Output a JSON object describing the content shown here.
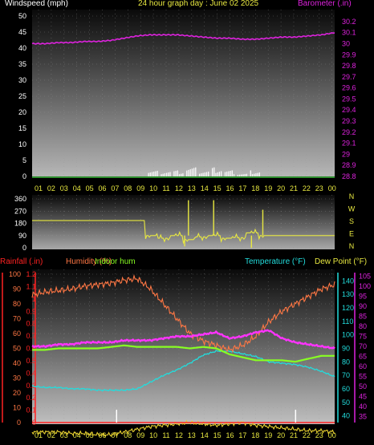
{
  "header": {
    "wind_title": "Windspeed (mph)",
    "graph_title": "24 hour graph day : June 02 2025",
    "baro_title": "Barometer (.in)"
  },
  "bottom_header": {
    "rain_title": "Rainfall (.in)",
    "hum_title": "Humidity (%)",
    "indoor_title": "Indoor hum",
    "temp_title": "Temperature (°F)",
    "dew_title": "Dew Point (°F)"
  },
  "colors": {
    "wind": "#ffffff",
    "baro": "#dd22dd",
    "dir": "#e8e840",
    "humidity": "#ff7744",
    "indoor": "#88ff22",
    "rain": "#ff2222",
    "temperature": "#22dddd",
    "dewpoint": "#ff33ff",
    "yellow_trace": "#e8d030"
  },
  "chart_data": [
    {
      "type": "line",
      "title": "24 hour graph day : June 02 2025",
      "x": [
        "01",
        "02",
        "03",
        "04",
        "05",
        "06",
        "07",
        "08",
        "09",
        "10",
        "11",
        "12",
        "13",
        "14",
        "15",
        "16",
        "17",
        "18",
        "19",
        "20",
        "21",
        "22",
        "23",
        "00"
      ],
      "left_axis": {
        "label": "Windspeed (mph)",
        "ticks": [
          0,
          5,
          10,
          15,
          20,
          25,
          30,
          35,
          40,
          45,
          50
        ],
        "ylim": [
          0,
          50
        ]
      },
      "right_axis": {
        "label": "Barometer (.in)",
        "ticks": [
          "28.8",
          "28.9",
          "29",
          "29.1",
          "29.2",
          "29.3",
          "29.4",
          "29.5",
          "29.6",
          "29.7",
          "29.8",
          "29.9",
          "30",
          "30.1",
          "30.2"
        ],
        "ylim": [
          28.8,
          30.25
        ]
      },
      "series": [
        {
          "name": "Windspeed (mph)",
          "hourly_max": [
            0,
            0,
            0,
            0,
            0,
            0,
            0,
            0,
            0,
            2,
            2,
            2,
            3,
            2,
            3,
            2,
            1,
            2,
            0,
            0,
            0,
            0,
            0,
            0
          ]
        },
        {
          "name": "Barometer (.in)",
          "values": [
            30.0,
            30.0,
            30.01,
            30.01,
            30.02,
            30.02,
            30.03,
            30.05,
            30.07,
            30.08,
            30.08,
            30.08,
            30.07,
            30.06,
            30.05,
            30.05,
            30.04,
            30.04,
            30.05,
            30.06,
            30.06,
            30.07,
            30.08,
            30.1
          ]
        }
      ]
    },
    {
      "type": "line",
      "x": [
        "01",
        "02",
        "03",
        "04",
        "05",
        "06",
        "07",
        "08",
        "09",
        "10",
        "11",
        "12",
        "13",
        "14",
        "15",
        "16",
        "17",
        "18",
        "19",
        "20",
        "21",
        "22",
        "23",
        "00"
      ],
      "right_labels": [
        "N",
        "W",
        "S",
        "E",
        "N"
      ],
      "y_ticks": [
        0,
        90,
        180,
        270,
        360
      ],
      "ylim": [
        0,
        360
      ],
      "series": [
        {
          "name": "Wind direction",
          "values": [
            200,
            200,
            200,
            200,
            200,
            200,
            200,
            200,
            200,
            90,
            70,
            90,
            60,
            80,
            90,
            70,
            75,
            110,
            90,
            90,
            90,
            90,
            90,
            90
          ]
        }
      ]
    },
    {
      "type": "line",
      "x": [
        "01",
        "02",
        "03",
        "04",
        "05",
        "06",
        "07",
        "08",
        "09",
        "10",
        "11",
        "12",
        "13",
        "14",
        "15",
        "16",
        "17",
        "18",
        "19",
        "20",
        "21",
        "22",
        "23",
        "00"
      ],
      "rain_axis": {
        "label": "Rainfall (.in)",
        "ticks": [
          "0",
          "0.1",
          "0.2",
          "0.3",
          "0.4",
          "0.5",
          "0.6",
          "0.7",
          "0.8",
          "0.9",
          "1",
          "1.1",
          "1.2"
        ]
      },
      "humidity_axis": {
        "label": "Humidity (%)",
        "ticks": [
          0,
          10,
          20,
          30,
          40,
          50,
          60,
          70,
          80,
          90,
          100
        ],
        "ylim": [
          0,
          100
        ]
      },
      "temp_axis": {
        "label": "Temperature (°F)",
        "ticks": [
          40,
          50,
          60,
          70,
          80,
          90,
          100,
          110,
          120,
          130,
          140
        ],
        "ylim": [
          35,
          145
        ]
      },
      "dew_axis": {
        "label": "Dew Point (°F)",
        "ticks": [
          35,
          40,
          45,
          50,
          55,
          60,
          65,
          70,
          75,
          80,
          85,
          90,
          95,
          100,
          105
        ],
        "ylim": [
          32,
          106
        ]
      },
      "series": [
        {
          "name": "Humidity (%)",
          "values": [
            86,
            88,
            89,
            90,
            92,
            93,
            94,
            96,
            97,
            90,
            80,
            70,
            60,
            55,
            52,
            49,
            52,
            58,
            68,
            75,
            80,
            85,
            90,
            93
          ]
        },
        {
          "name": "Indoor hum",
          "values": [
            49,
            49,
            50,
            50,
            50,
            50,
            51,
            52,
            51,
            51,
            51,
            51,
            50,
            51,
            50,
            46,
            44,
            42,
            42,
            42,
            41,
            43,
            45,
            45
          ]
        },
        {
          "name": "Temperature (°F)",
          "values": [
            62,
            61,
            61,
            60,
            60,
            59,
            59,
            59,
            60,
            65,
            70,
            74,
            79,
            85,
            88,
            88,
            86,
            84,
            80,
            79,
            78,
            76,
            73,
            69
          ]
        },
        {
          "name": "Dew Point (°F)",
          "values": [
            70,
            70,
            71,
            71,
            72,
            72,
            72,
            73,
            73,
            73,
            74,
            75,
            75,
            76,
            77,
            74,
            75,
            77,
            78,
            74,
            72,
            71,
            70,
            69
          ]
        },
        {
          "name": "Yellow trace",
          "values": [
            28,
            28,
            28,
            27,
            27,
            26,
            26,
            28,
            30,
            32,
            33,
            34,
            35,
            34,
            33,
            34,
            35,
            33,
            32,
            31,
            30,
            29,
            29,
            28
          ]
        },
        {
          "name": "Rainfall (.in)",
          "values": [
            0,
            0,
            0,
            0,
            0,
            0,
            0,
            0,
            0,
            0,
            0,
            0,
            0,
            0,
            0,
            0,
            0,
            0,
            0,
            0,
            0,
            0,
            0,
            0
          ]
        }
      ]
    }
  ]
}
